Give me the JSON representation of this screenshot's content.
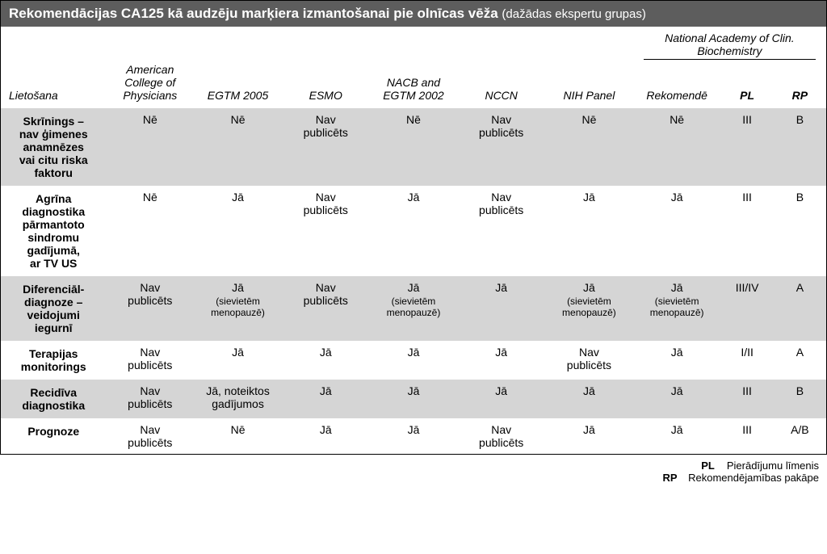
{
  "title": {
    "main": "Rekomendācijas CA125 kā audzēju marķiera izmantošanai pie olnīcas vēža",
    "paren": "(dažādas ekspertu grupas)"
  },
  "supergroup": "National Academy of Clin. Biochemistry",
  "headers": {
    "use": "Lietošana",
    "acp_l1": "American",
    "acp_l2": "College of",
    "acp_l3": "Physicians",
    "egtm": "EGTM 2005",
    "esmo": "ESMO",
    "nacb_l1": "NACB and",
    "nacb_l2": "EGTM 2002",
    "nccn": "NCCN",
    "nih": "NIH Panel",
    "rec": "Rekomendē",
    "pl": "PL",
    "rp": "RP"
  },
  "rows": [
    {
      "label_l1": "Skrīnings –",
      "label_l2": "nav ģimenes",
      "label_l3": "anamnēzes",
      "label_l4": "vai citu riska",
      "label_l5": "faktoru",
      "acp": "Nē",
      "egtm": "Nē",
      "esmo": "Nav publicēts",
      "nacb": "Nē",
      "nccn": "Nav publicēts",
      "nih": "Nē",
      "rec": "Nē",
      "pl": "III",
      "rp": "B",
      "band": true
    },
    {
      "label_l1": "Agrīna",
      "label_l2": "diagnostika",
      "label_l3": "pārmantoto",
      "label_l4": "sindromu",
      "label_l5": "gadījumā,",
      "label_l6": "ar TV US",
      "acp": "Nē",
      "egtm": "Jā",
      "esmo": "Nav publicēts",
      "nacb": "Jā",
      "nccn": "Nav publicēts",
      "nih": "Jā",
      "rec": "Jā",
      "pl": "III",
      "rp": "B",
      "band": false
    },
    {
      "label_l1": "Diferenciāl-",
      "label_l2": "diagnoze –",
      "label_l3": "veidojumi",
      "label_l4": "iegurnī",
      "acp": "Nav publicēts",
      "egtm": "Jā",
      "egtm_sub": "(sievietēm menopauzē)",
      "esmo": "Nav publicēts",
      "nacb": "Jā",
      "nacb_sub": "(sievietēm menopauzē)",
      "nccn": "Jā",
      "nih": "Jā",
      "nih_sub": "(sievietēm menopauzē)",
      "rec": "Jā",
      "rec_sub": "(sievietēm menopauzē)",
      "pl": "III/IV",
      "rp": "A",
      "band": true
    },
    {
      "label_l1": "Terapijas",
      "label_l2": "monitorings",
      "acp": "Nav publicēts",
      "egtm": "Jā",
      "esmo": "Jā",
      "nacb": "Jā",
      "nccn": "Jā",
      "nih": "Nav publicēts",
      "rec": "Jā",
      "pl": "I/II",
      "rp": "A",
      "band": false
    },
    {
      "label_l1": "Recidīva",
      "label_l2": "diagnostika",
      "acp": "Nav publicēts",
      "egtm": "Jā, noteiktos gadījumos",
      "esmo": "Jā",
      "nacb": "Jā",
      "nccn": "Jā",
      "nih": "Jā",
      "rec": "Jā",
      "pl": "III",
      "rp": "B",
      "band": true
    },
    {
      "label_l1": "Prognoze",
      "acp": "Nav publicēts",
      "egtm": "Nē",
      "esmo": "Jā",
      "nacb": "Jā",
      "nccn": "Nav publicēts",
      "nih": "Jā",
      "rec": "Jā",
      "pl": "III",
      "rp": "A/B",
      "band": false
    }
  ],
  "legend": {
    "pl_abbr": "PL",
    "pl_text": "Pierādījumu līmenis",
    "rp_abbr": "RP",
    "rp_text": "Rekomendējamības pakāpe"
  },
  "colors": {
    "title_bg": "#5d5d5d",
    "band_bg": "#d5d5d5",
    "white": "#ffffff",
    "text": "#000000"
  }
}
